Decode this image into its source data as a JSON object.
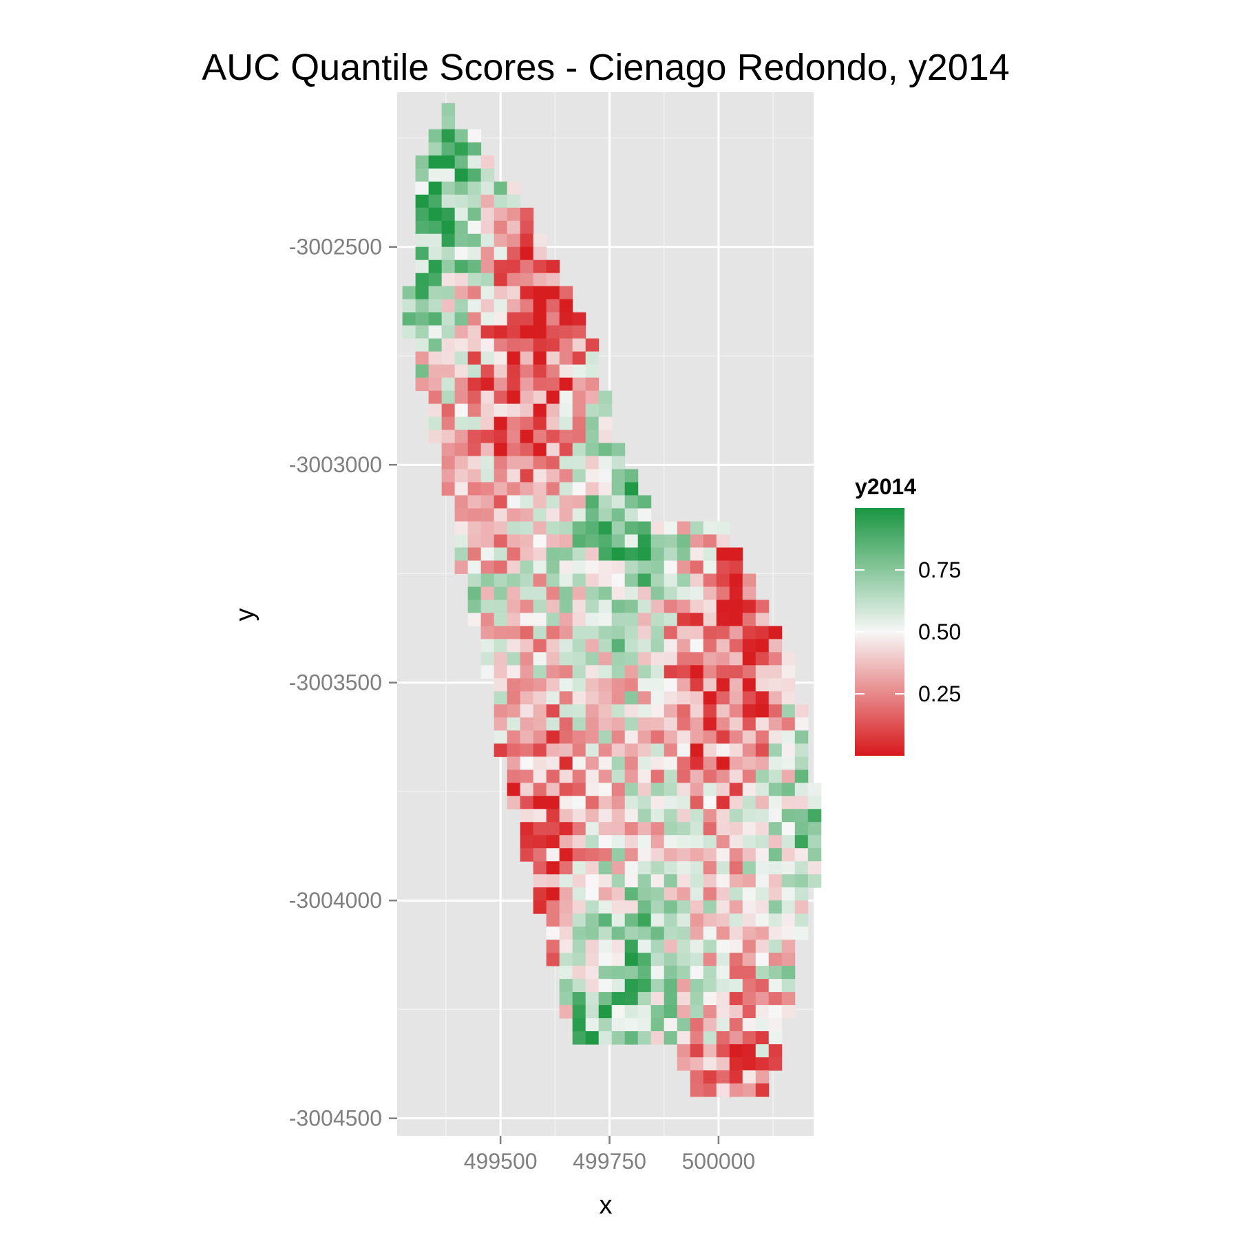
{
  "chart_data": {
    "type": "heatmap",
    "title": "AUC Quantile Scores - Cienago Redondo, y2014",
    "xlabel": "x",
    "ylabel": "y",
    "x_ticks": [
      499500,
      499750,
      500000
    ],
    "y_ticks": [
      -3002500,
      -3003000,
      -3003500,
      -3004000,
      -3004500
    ],
    "xlim": [
      499263,
      500218
    ],
    "ylim": [
      -3004540,
      -3002145
    ],
    "grid": true,
    "cell_size": 30,
    "legend": {
      "title": "y2014",
      "position": "right",
      "ticks": [
        0.25,
        0.5,
        0.75
      ],
      "tick_labels": [
        "0.25",
        "0.50",
        "0.75"
      ],
      "range": [
        0,
        1
      ],
      "low_color": "#d7191c",
      "mid_color": "#f7f7f7",
      "high_color": "#1a9641",
      "midpoint": 0.5
    },
    "region_rows": [
      {
        "y": -3002200,
        "x0": 499380,
        "x1": 499380,
        "seed": 1
      },
      {
        "y": -3002260,
        "x0": 499350,
        "x1": 499440,
        "seed": 2
      },
      {
        "y": -3002320,
        "x0": 499320,
        "x1": 499470,
        "seed": 3
      },
      {
        "y": -3002380,
        "x0": 499320,
        "x1": 499530,
        "seed": 4
      },
      {
        "y": -3002440,
        "x0": 499320,
        "x1": 499560,
        "seed": 5
      },
      {
        "y": -3002500,
        "x0": 499320,
        "x1": 499590,
        "seed": 6
      },
      {
        "y": -3002560,
        "x0": 499320,
        "x1": 499620,
        "seed": 7
      },
      {
        "y": -3002620,
        "x0": 499290,
        "x1": 499650,
        "seed": 8
      },
      {
        "y": -3002680,
        "x0": 499290,
        "x1": 499680,
        "seed": 9
      },
      {
        "y": -3002740,
        "x0": 499320,
        "x1": 499710,
        "seed": 10
      },
      {
        "y": -3002800,
        "x0": 499320,
        "x1": 499710,
        "seed": 11
      },
      {
        "y": -3002860,
        "x0": 499350,
        "x1": 499740,
        "seed": 12
      },
      {
        "y": -3002920,
        "x0": 499350,
        "x1": 499740,
        "seed": 13
      },
      {
        "y": -3002980,
        "x0": 499380,
        "x1": 499770,
        "seed": 14
      },
      {
        "y": -3003040,
        "x0": 499380,
        "x1": 499800,
        "seed": 15
      },
      {
        "y": -3003100,
        "x0": 499410,
        "x1": 499830,
        "seed": 16
      },
      {
        "y": -3003160,
        "x0": 499410,
        "x1": 500010,
        "seed": 17
      },
      {
        "y": -3003220,
        "x0": 499410,
        "x1": 500040,
        "seed": 18
      },
      {
        "y": -3003280,
        "x0": 499440,
        "x1": 500070,
        "seed": 19
      },
      {
        "y": -3003340,
        "x0": 499440,
        "x1": 500100,
        "seed": 20
      },
      {
        "y": -3003400,
        "x0": 499470,
        "x1": 500130,
        "seed": 21
      },
      {
        "y": -3003460,
        "x0": 499470,
        "x1": 500160,
        "seed": 22
      },
      {
        "y": -3003520,
        "x0": 499500,
        "x1": 500160,
        "seed": 23
      },
      {
        "y": -3003580,
        "x0": 499500,
        "x1": 500190,
        "seed": 24
      },
      {
        "y": -3003640,
        "x0": 499500,
        "x1": 500190,
        "seed": 25
      },
      {
        "y": -3003700,
        "x0": 499530,
        "x1": 500190,
        "seed": 26
      },
      {
        "y": -3003760,
        "x0": 499530,
        "x1": 500220,
        "seed": 27
      },
      {
        "y": -3003820,
        "x0": 499560,
        "x1": 500220,
        "seed": 28
      },
      {
        "y": -3003880,
        "x0": 499560,
        "x1": 500220,
        "seed": 29
      },
      {
        "y": -3003940,
        "x0": 499590,
        "x1": 500220,
        "seed": 30
      },
      {
        "y": -3004000,
        "x0": 499590,
        "x1": 500190,
        "seed": 31
      },
      {
        "y": -3004060,
        "x0": 499620,
        "x1": 500190,
        "seed": 32
      },
      {
        "y": -3004120,
        "x0": 499620,
        "x1": 500160,
        "seed": 33
      },
      {
        "y": -3004180,
        "x0": 499650,
        "x1": 500160,
        "seed": 34
      },
      {
        "y": -3004240,
        "x0": 499650,
        "x1": 500160,
        "seed": 35
      },
      {
        "y": -3004300,
        "x0": 499680,
        "x1": 500130,
        "seed": 36
      },
      {
        "y": -3004360,
        "x0": 499920,
        "x1": 500130,
        "seed": 37
      },
      {
        "y": -3004420,
        "x0": 499950,
        "x1": 500100,
        "seed": 38
      }
    ]
  }
}
